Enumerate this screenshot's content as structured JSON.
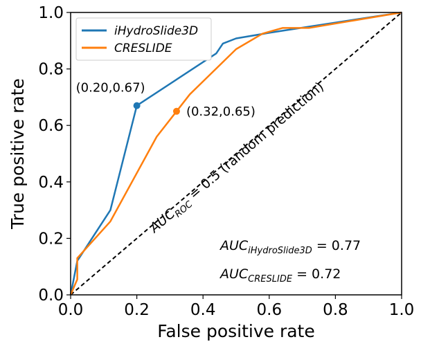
{
  "chart_data": {
    "type": "line",
    "xlabel": "False positive rate",
    "ylabel": "True positive rate",
    "xlim": [
      0,
      1
    ],
    "ylim": [
      0,
      1
    ],
    "xticks": [
      "0.0",
      "0.2",
      "0.4",
      "0.6",
      "0.8",
      "1.0"
    ],
    "yticks": [
      "0.0",
      "0.2",
      "0.4",
      "0.6",
      "0.8",
      "1.0"
    ],
    "grid": false,
    "legend_position": "top-left",
    "series": [
      {
        "name": "iHydroSlide3D",
        "color": "#1f77b4",
        "points": [
          [
            0,
            0
          ],
          [
            0.02,
            0.12
          ],
          [
            0.12,
            0.3
          ],
          [
            0.2,
            0.67
          ],
          [
            0.44,
            0.855
          ],
          [
            0.46,
            0.89
          ],
          [
            0.5,
            0.908
          ],
          [
            0.6,
            0.928
          ],
          [
            0.7,
            0.946
          ],
          [
            1.0,
            1.0
          ]
        ]
      },
      {
        "name": "CRESLIDE",
        "color": "#ff7f0e",
        "points": [
          [
            0,
            0
          ],
          [
            0.02,
            0.055
          ],
          [
            0.02,
            0.13
          ],
          [
            0.12,
            0.26
          ],
          [
            0.26,
            0.56
          ],
          [
            0.32,
            0.65
          ],
          [
            0.36,
            0.71
          ],
          [
            0.5,
            0.87
          ],
          [
            0.58,
            0.925
          ],
          [
            0.64,
            0.945
          ],
          [
            0.72,
            0.945
          ],
          [
            1.0,
            1.0
          ]
        ]
      }
    ],
    "markers": [
      {
        "series": 0,
        "x": 0.2,
        "y": 0.67,
        "label": "(0.20,0.67)",
        "color": "#1f77b4"
      },
      {
        "series": 1,
        "x": 0.32,
        "y": 0.65,
        "label": "(0.32,0.65)",
        "color": "#ff7f0e"
      }
    ],
    "reference_line": {
      "points": [
        [
          0,
          0
        ],
        [
          1,
          1
        ]
      ],
      "style": "dashed",
      "color": "#000000",
      "label_main": "AUC",
      "label_sub": "ROC",
      "label_rest": " = 0.5 (random prediction)"
    },
    "auc_annotations": [
      {
        "main": "AUC",
        "sub": "iHydroSlide3D",
        "value": " = 0.77"
      },
      {
        "main": "AUC",
        "sub": "CRESLIDE",
        "value": " = 0.72"
      }
    ]
  }
}
